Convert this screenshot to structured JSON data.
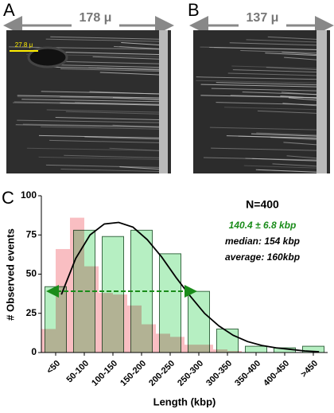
{
  "panels": [
    {
      "label": "A",
      "width_label": "178 μ",
      "scale_label": "27.8 μ"
    },
    {
      "label": "B",
      "width_label": "137 μ"
    }
  ],
  "chart_data": {
    "type": "bar",
    "panel_label": "C",
    "x_label": "Length (kbp)",
    "y_label": "# Observed events",
    "categories": [
      "<50",
      "50-100",
      "100-150",
      "150-200",
      "200-250",
      "250-300",
      "300-350",
      "350-400",
      "400-450",
      ">450"
    ],
    "series": [
      {
        "color": "#b6efc2",
        "values": [
          42,
          78,
          74,
          78,
          63,
          39,
          15,
          4,
          3,
          4
        ]
      }
    ],
    "overlay": {
      "color": "#f7a8ae",
      "bins": [
        0,
        25,
        50,
        75,
        100,
        125,
        150,
        175,
        200,
        225,
        250,
        275,
        300,
        325,
        350
      ],
      "values": [
        15,
        66,
        86,
        55,
        38,
        37,
        30,
        18,
        12,
        10,
        5,
        5,
        2,
        1
      ]
    },
    "fit": {
      "x": [
        35,
        60,
        85,
        110,
        135,
        160,
        185,
        210,
        235,
        260,
        285,
        310,
        335,
        360,
        385,
        410,
        435,
        460,
        485
      ],
      "values": [
        37,
        60,
        75,
        82,
        83,
        80,
        72,
        61,
        48,
        36,
        25,
        17,
        11,
        7,
        4.5,
        3,
        2,
        1,
        0.5
      ]
    },
    "annotations": [
      {
        "text": "N=400",
        "color": "#000000"
      },
      {
        "text": "140.4 ± 6.8 kbp",
        "color": "#1a8c1a"
      },
      {
        "text": "median: 154 kbp",
        "color": "#000000"
      },
      {
        "text": "average: 160kbp",
        "color": "#000000"
      }
    ],
    "ylim": [
      0,
      100
    ],
    "yticks": [
      0,
      25,
      50,
      75,
      100
    ]
  }
}
